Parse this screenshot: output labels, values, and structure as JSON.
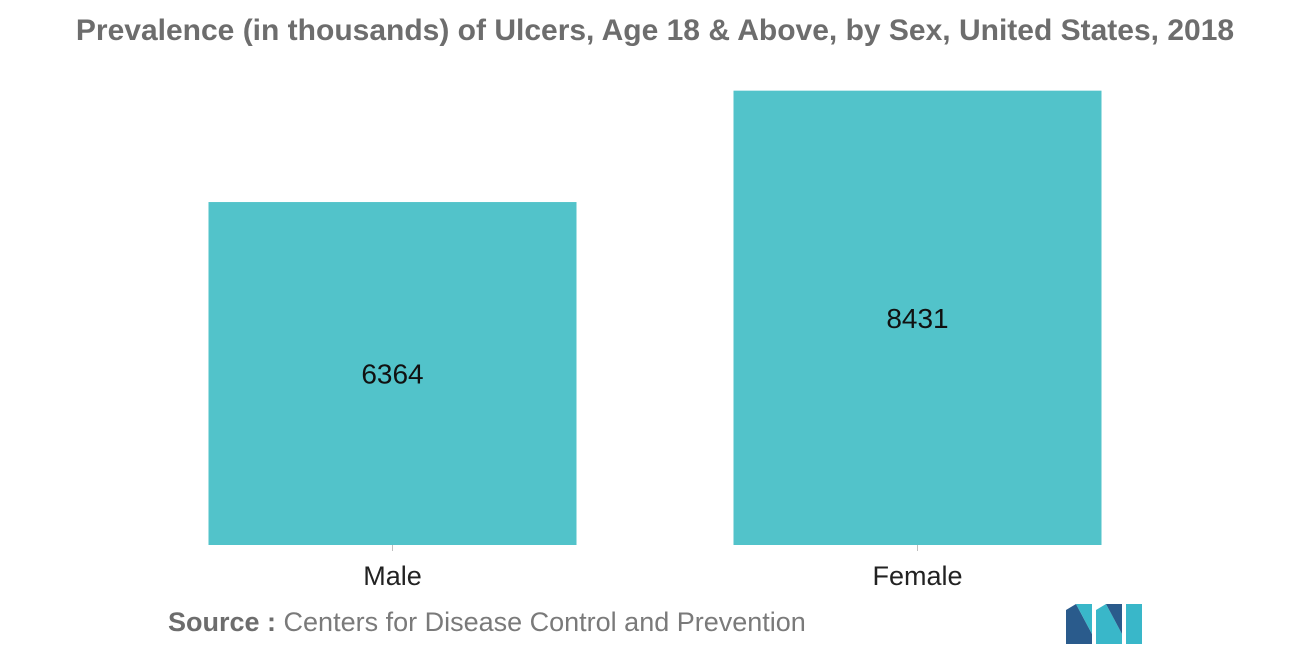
{
  "chart_data": {
    "type": "bar",
    "title": "Prevalence (in thousands) of Ulcers, Age 18 & Above, by Sex, United States, 2018",
    "categories": [
      "Male",
      "Female"
    ],
    "values": [
      6364,
      8431
    ],
    "data_labels": [
      "6364",
      "8431"
    ],
    "ylim": [
      0,
      9000
    ],
    "grid": false,
    "legend": "none",
    "bar_color": "#52c3ca",
    "label_color": "#111111",
    "axis_color": "#bfbfbf"
  },
  "source": {
    "label": "Source :",
    "text": "Centers for Disease Control and Prevention"
  },
  "logo": {
    "icon": "brand-logo-icon",
    "colors": [
      "#2a5b8c",
      "#39b7c9"
    ]
  }
}
